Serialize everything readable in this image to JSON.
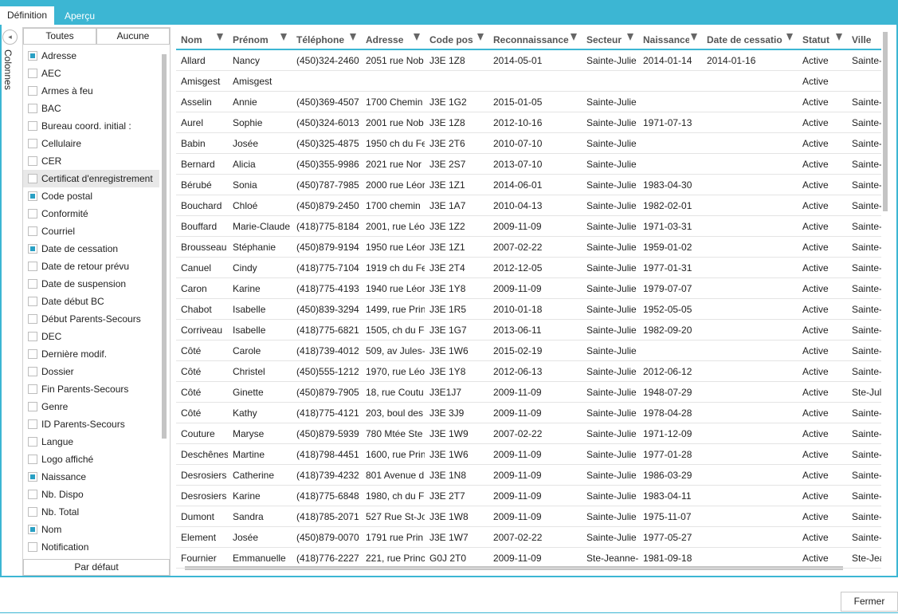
{
  "tabs": [
    "Définition",
    "Aperçu"
  ],
  "side_label": "Colonnes",
  "column_picker": {
    "buttons": [
      "Toutes",
      "Aucune"
    ],
    "default_button": "Par défaut",
    "items": [
      {
        "label": "Adresse",
        "checked": true
      },
      {
        "label": "AEC",
        "checked": false
      },
      {
        "label": "Armes à feu",
        "checked": false
      },
      {
        "label": "BAC",
        "checked": false
      },
      {
        "label": "Bureau coord. initial :",
        "checked": false
      },
      {
        "label": "Cellulaire",
        "checked": false
      },
      {
        "label": "CER",
        "checked": false
      },
      {
        "label": "Certificat d'enregistrement",
        "checked": false
      },
      {
        "label": "Code postal",
        "checked": true
      },
      {
        "label": "Conformité",
        "checked": false
      },
      {
        "label": "Courriel",
        "checked": false
      },
      {
        "label": "Date de cessation",
        "checked": true
      },
      {
        "label": "Date de retour prévu",
        "checked": false
      },
      {
        "label": "Date de suspension",
        "checked": false
      },
      {
        "label": "Date début BC",
        "checked": false
      },
      {
        "label": "Début Parents-Secours",
        "checked": false
      },
      {
        "label": "DEC",
        "checked": false
      },
      {
        "label": "Dernière modif.",
        "checked": false
      },
      {
        "label": "Dossier",
        "checked": false
      },
      {
        "label": "Fin Parents-Secours",
        "checked": false
      },
      {
        "label": "Genre",
        "checked": false
      },
      {
        "label": "ID Parents-Secours",
        "checked": false
      },
      {
        "label": "Langue",
        "checked": false
      },
      {
        "label": "Logo affiché",
        "checked": false
      },
      {
        "label": "Naissance",
        "checked": true
      },
      {
        "label": "Nb. Dispo",
        "checked": false
      },
      {
        "label": "Nb. Total",
        "checked": false
      },
      {
        "label": "Nom",
        "checked": true
      },
      {
        "label": "Notification",
        "checked": false
      }
    ]
  },
  "table": {
    "columns": [
      "Nom",
      "Prénom",
      "Téléphone",
      "Adresse",
      "Code pos",
      "Reconnaissance",
      "Secteur",
      "Naissance",
      "Date de cessatio",
      "Statut",
      "Ville"
    ],
    "rows": [
      [
        "Allard",
        "Nancy",
        "(450)324-2460",
        "2051 rue Nob",
        "J3E 1Z8",
        "2014-05-01",
        "Sainte-Julie",
        "2014-01-14",
        "2014-01-16",
        "Active",
        "Sainte-"
      ],
      [
        "Amisgest",
        "Amisgest",
        "",
        "",
        "",
        "",
        "",
        "",
        "",
        "Active",
        ""
      ],
      [
        "Asselin",
        "Annie",
        "(450)369-4507",
        "1700 Chemin",
        "J3E 1G2",
        "2015-01-05",
        "Sainte-Julie",
        "",
        "",
        "Active",
        "Sainte-"
      ],
      [
        "Aurel",
        "Sophie",
        "(450)324-6013",
        "2001 rue Nob",
        "J3E 1Z8",
        "2012-10-16",
        "Sainte-Julie",
        "1971-07-13",
        "",
        "Active",
        "Sainte-"
      ],
      [
        "Babin",
        "Josée",
        "(450)325-4875",
        "1950 ch du Fe",
        "J3E 2T6",
        "2010-07-10",
        "Sainte-Julie",
        "",
        "",
        "Active",
        "Sainte-"
      ],
      [
        "Bernard",
        "Alicia",
        "(450)355-9986",
        "2021 rue Nor",
        "J3E 2S7",
        "2013-07-10",
        "Sainte-Julie",
        "",
        "",
        "Active",
        "Sainte-"
      ],
      [
        "Bérubé",
        "Sonia",
        "(450)787-7985",
        "2000 rue Léor",
        "J3E 1Z1",
        "2014-06-01",
        "Sainte-Julie",
        "1983-04-30",
        "",
        "Active",
        "Sainte-"
      ],
      [
        "Bouchard",
        "Chloé",
        "(450)879-2450",
        "1700 chemin",
        "J3E 1A7",
        "2010-04-13",
        "Sainte-Julie",
        "1982-02-01",
        "",
        "Active",
        "Sainte-"
      ],
      [
        "Bouffard",
        "Marie-Claude",
        "(418)775-8184",
        "2001, rue Léo",
        "J3E 1Z2",
        "2009-11-09",
        "Sainte-Julie",
        "1971-03-31",
        "",
        "Active",
        "Sainte-"
      ],
      [
        "Brousseau",
        "Stéphanie",
        "(450)879-9194",
        "1950 rue Léor",
        "J3E 1Z1",
        "2007-02-22",
        "Sainte-Julie",
        "1959-01-02",
        "",
        "Active",
        "Sainte-"
      ],
      [
        "Canuel",
        "Cindy",
        "(418)775-7104",
        "1919 ch du Fe",
        "J3E 2T4",
        "2012-12-05",
        "Sainte-Julie",
        "1977-01-31",
        "",
        "Active",
        "Sainte-"
      ],
      [
        "Caron",
        "Karine",
        "(418)775-4193",
        "1940 rue Léor",
        "J3E 1Y8",
        "2009-11-09",
        "Sainte-Julie",
        "1979-07-07",
        "",
        "Active",
        "Sainte-"
      ],
      [
        "Chabot",
        "Isabelle",
        "(450)839-3294",
        "1499, rue Prin",
        "J3E 1R5",
        "2010-01-18",
        "Sainte-Julie",
        "1952-05-05",
        "",
        "Active",
        "Sainte-"
      ],
      [
        "Corriveau",
        "Isabelle",
        "(418)775-6821",
        "1505, ch du Fe",
        "J3E 1G7",
        "2013-06-11",
        "Sainte-Julie",
        "1982-09-20",
        "",
        "Active",
        "Sainte-"
      ],
      [
        "Côté",
        "Carole",
        "(418)739-4012",
        "509, av Jules-",
        "J3E 1W6",
        "2015-02-19",
        "Sainte-Julie",
        "",
        "",
        "Active",
        "Sainte-"
      ],
      [
        "Côté",
        "Christel",
        "(450)555-1212",
        "1970, rue Léo",
        "J3E 1Y8",
        "2012-06-13",
        "Sainte-Julie",
        "2012-06-12",
        "",
        "Active",
        "Sainte-"
      ],
      [
        "Côté",
        "Ginette",
        "(450)879-7905",
        "18, rue Coutu",
        "J3E1J7",
        "2009-11-09",
        "Sainte-Julie",
        "1948-07-29",
        "",
        "Active",
        "Ste-Jul"
      ],
      [
        "Côté",
        "Kathy",
        "(418)775-4121",
        "203, boul des",
        "J3E 3J9",
        "2009-11-09",
        "Sainte-Julie",
        "1978-04-28",
        "",
        "Active",
        "Sainte-"
      ],
      [
        "Couture",
        "Maryse",
        "(450)879-5939",
        "780 Mtée Ste",
        "J3E 1W9",
        "2007-02-22",
        "Sainte-Julie",
        "1971-12-09",
        "",
        "Active",
        "Sainte-"
      ],
      [
        "Deschênes",
        "Martine",
        "(418)798-4451",
        "1600, rue Prin",
        "J3E 1W6",
        "2009-11-09",
        "Sainte-Julie",
        "1977-01-28",
        "",
        "Active",
        "Sainte-"
      ],
      [
        "Desrosiers",
        "Catherine",
        "(418)739-4232",
        "801 Avenue d",
        "J3E 1N8",
        "2009-11-09",
        "Sainte-Julie",
        "1986-03-29",
        "",
        "Active",
        "Sainte-"
      ],
      [
        "Desrosiers",
        "Karine",
        "(418)775-6848",
        "1980, ch du F",
        "J3E 2T7",
        "2009-11-09",
        "Sainte-Julie",
        "1983-04-11",
        "",
        "Active",
        "Sainte-"
      ],
      [
        "Dumont",
        "Sandra",
        "(418)785-2071",
        "527 Rue St-Jo",
        "J3E 1W8",
        "2009-11-09",
        "Sainte-Julie",
        "1975-11-07",
        "",
        "Active",
        "Sainte-"
      ],
      [
        "Element",
        "Josée",
        "(450)879-0070",
        "1791 rue Prin",
        "J3E 1W7",
        "2007-02-22",
        "Sainte-Julie",
        "1977-05-27",
        "",
        "Active",
        "Sainte-"
      ],
      [
        "Fournier",
        "Emmanuelle",
        "(418)776-2227",
        "221, rue Princ",
        "G0J 2T0",
        "2009-11-09",
        "Ste-Jeanne-",
        "1981-09-18",
        "",
        "Active",
        "Ste-Jea"
      ]
    ]
  },
  "close_button": "Fermer"
}
